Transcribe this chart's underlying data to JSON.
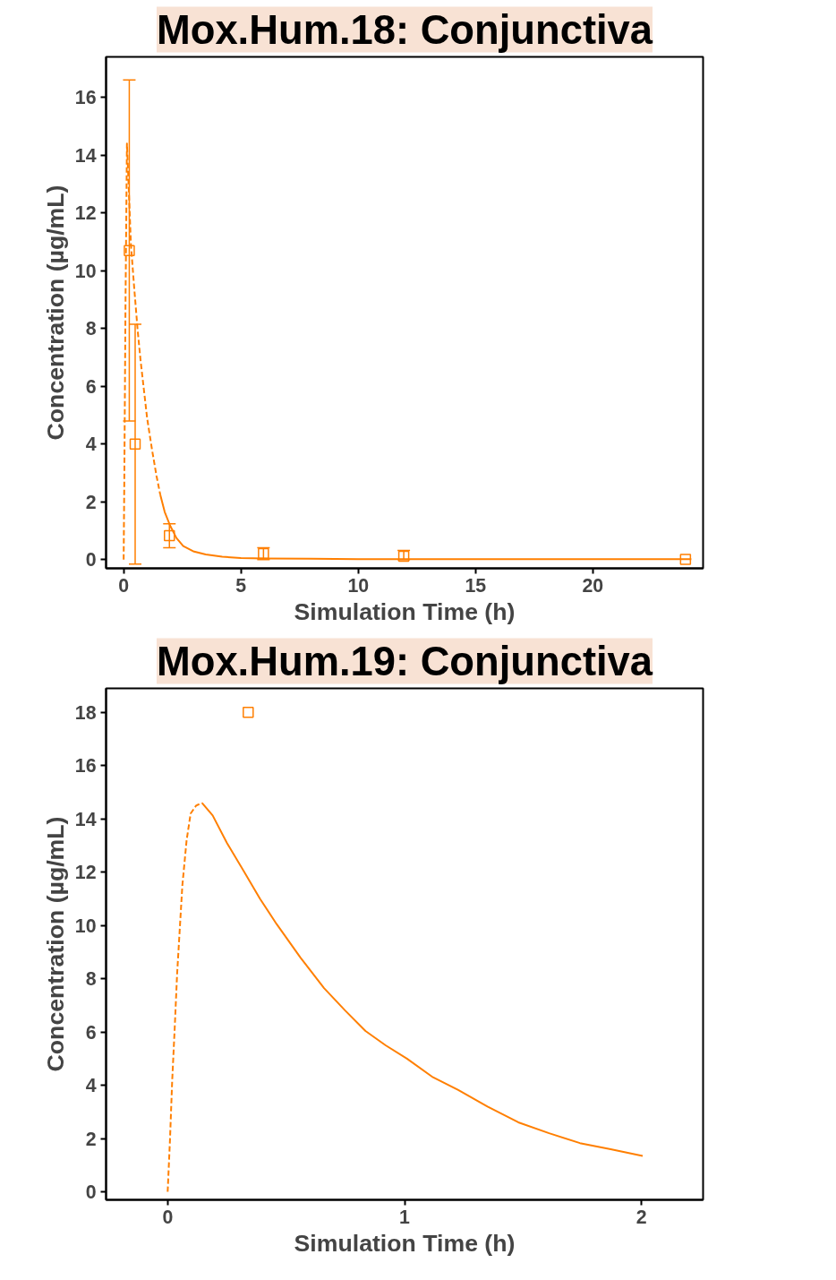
{
  "chart_data": [
    {
      "type": "line",
      "title": "Mox.Hum.18: Conjunctiva",
      "xlabel": "Simulation Time (h)",
      "ylabel": "Concentration (µg/mL)",
      "xlim": [
        -0.75,
        24.7
      ],
      "ylim": [
        -0.3,
        17.4
      ],
      "xticks": [
        0,
        5,
        10,
        15,
        20
      ],
      "yticks": [
        0,
        2,
        4,
        6,
        8,
        10,
        12,
        14,
        16
      ],
      "grid": false,
      "series": [
        {
          "line_style": "dashed",
          "color": "#ff7f00",
          "x": [
            0,
            0.03,
            0.08,
            0.14,
            0.2,
            0.31,
            0.45,
            0.59,
            0.72,
            0.86,
            1.0,
            1.21,
            1.4,
            1.56
          ],
          "values": [
            0,
            3,
            9,
            14.4,
            13.2,
            10.9,
            9.4,
            8.0,
            6.9,
            5.9,
            4.9,
            3.8,
            2.9,
            2.25
          ]
        },
        {
          "line_style": "solid",
          "color": "#ff7f00",
          "x": [
            1.56,
            1.75,
            1.98,
            2.25,
            2.54,
            3.0,
            3.5,
            4.2,
            5,
            6,
            8,
            10,
            12,
            15,
            18,
            21,
            24.2
          ],
          "values": [
            2.25,
            1.65,
            1.18,
            0.75,
            0.47,
            0.28,
            0.18,
            0.1,
            0.06,
            0.04,
            0.03,
            0.02,
            0.02,
            0.02,
            0.02,
            0.02,
            0.02
          ]
        },
        {
          "type": "scatter",
          "marker": "square",
          "color": "#ff7f00",
          "x": [
            0.24,
            0.49,
            1.95,
            5.96,
            11.94,
            23.95
          ],
          "values": [
            10.7,
            4.0,
            0.83,
            0.21,
            0.12,
            0.01
          ],
          "errors": [
            [
              4.8,
              16.6
            ],
            [
              -0.15,
              8.15
            ],
            [
              0.41,
              1.24
            ],
            [
              0.0,
              0.41
            ],
            [
              0.0,
              0.32
            ],
            null
          ]
        }
      ]
    },
    {
      "type": "line",
      "title": "Mox.Hum.19: Conjunctiva",
      "xlabel": "Simulation Time (h)",
      "ylabel": "Concentration (µg/mL)",
      "xlim": [
        -0.26,
        2.26
      ],
      "ylim": [
        -0.3,
        18.9
      ],
      "xticks": [
        0,
        1,
        2
      ],
      "yticks": [
        0,
        2,
        4,
        6,
        8,
        10,
        12,
        14,
        16,
        18
      ],
      "grid": false,
      "series": [
        {
          "line_style": "dashed",
          "color": "#ff7f00",
          "x": [
            0,
            0.01,
            0.019,
            0.03,
            0.04,
            0.062,
            0.08,
            0.097,
            0.12,
            0.145
          ],
          "values": [
            0,
            2,
            4.15,
            6.2,
            8.2,
            11.5,
            13.2,
            14.2,
            14.5,
            14.6
          ]
        },
        {
          "line_style": "solid",
          "color": "#ff7f00",
          "x": [
            0.145,
            0.19,
            0.25,
            0.32,
            0.39,
            0.46,
            0.56,
            0.66,
            0.75,
            0.835,
            0.92,
            1.01,
            1.12,
            1.225,
            1.35,
            1.48,
            1.61,
            1.74,
            1.87,
            2.005
          ],
          "values": [
            14.6,
            14.13,
            13.1,
            12.06,
            11.0,
            10.05,
            8.8,
            7.65,
            6.8,
            6.04,
            5.5,
            5.0,
            4.3,
            3.83,
            3.2,
            2.61,
            2.2,
            1.83,
            1.6,
            1.35
          ]
        },
        {
          "type": "scatter",
          "marker": "square",
          "color": "#ff7f00",
          "x": [
            0.34
          ],
          "values": [
            18.0
          ]
        }
      ]
    }
  ]
}
